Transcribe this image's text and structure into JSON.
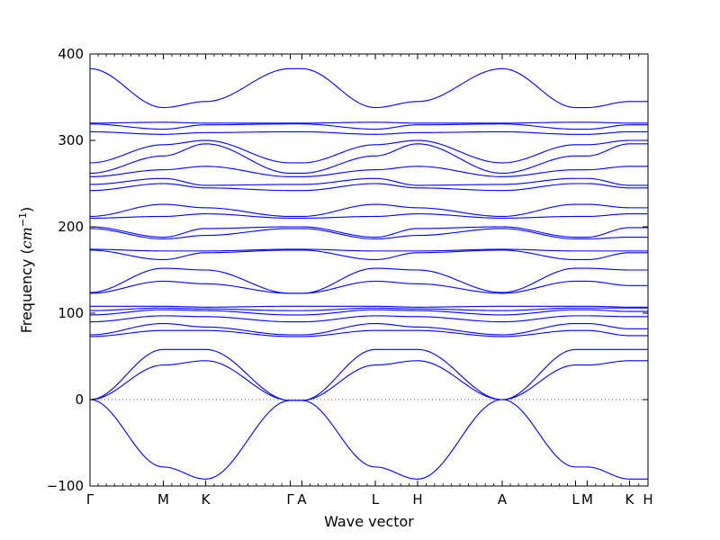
{
  "chart_data": {
    "type": "line",
    "title": "",
    "xlabel": "Wave vector",
    "ylabel": "Frequency (cm⁻¹)",
    "ylabel_text": "Frequency (",
    "ylabel_unit": "cm",
    "ylabel_exp": "−1",
    "ylabel_close": ")",
    "ylim": [
      -100,
      400
    ],
    "y_ticks": [
      -100,
      0,
      100,
      200,
      300,
      400
    ],
    "zero_line": {
      "y": 0,
      "style": "dotted"
    },
    "colors": {
      "bands": "#0000ff",
      "zero_line": "#666666"
    },
    "high_symmetry_points": [
      {
        "label": "Γ",
        "x": 0.0
      },
      {
        "label": "M",
        "x": 0.1315
      },
      {
        "label": "K",
        "x": 0.2073
      },
      {
        "label": "Γ",
        "x": 0.3589
      },
      {
        "label": "A",
        "x": 0.3798
      },
      {
        "label": "L",
        "x": 0.5113
      },
      {
        "label": "H",
        "x": 0.5871
      },
      {
        "label": "A",
        "x": 0.7387
      },
      {
        "label": "L",
        "x": 0.8702
      },
      {
        "label": "M",
        "x": 0.8911
      },
      {
        "label": "K",
        "x": 0.9669
      },
      {
        "label": "H",
        "x": 1.0
      }
    ],
    "series": [
      {
        "values": [
          0,
          -78,
          -92,
          -1,
          -1,
          -78,
          -92,
          0,
          -78,
          -78,
          -92,
          -92
        ]
      },
      {
        "values": [
          0,
          40,
          45,
          -1,
          -1,
          40,
          45,
          0,
          40,
          40,
          45,
          45
        ]
      },
      {
        "values": [
          0,
          58,
          58,
          -1,
          -1,
          58,
          58,
          0,
          58,
          58,
          58,
          58
        ]
      },
      {
        "values": [
          73,
          80,
          80,
          73,
          73,
          80,
          80,
          73,
          80,
          80,
          74,
          74
        ]
      },
      {
        "values": [
          75,
          88,
          84,
          75,
          75,
          88,
          84,
          75,
          88,
          88,
          82,
          82
        ]
      },
      {
        "values": [
          90,
          97,
          96,
          90,
          90,
          97,
          96,
          90,
          97,
          97,
          96,
          96
        ]
      },
      {
        "values": [
          98,
          104,
          103,
          98,
          98,
          104,
          103,
          98,
          104,
          104,
          102,
          102
        ]
      },
      {
        "values": [
          103,
          106,
          105,
          103,
          103,
          106,
          105,
          103,
          106,
          106,
          106,
          106
        ]
      },
      {
        "values": [
          108,
          108,
          107,
          108,
          108,
          108,
          107,
          108,
          108,
          108,
          107,
          107
        ]
      },
      {
        "values": [
          123,
          137,
          134,
          123,
          123,
          137,
          134,
          123,
          137,
          137,
          132,
          132
        ]
      },
      {
        "values": [
          124,
          152,
          150,
          123,
          123,
          152,
          150,
          124,
          152,
          152,
          150,
          150
        ]
      },
      {
        "values": [
          173,
          162,
          170,
          173,
          173,
          162,
          170,
          173,
          162,
          162,
          170,
          170
        ]
      },
      {
        "values": [
          174,
          172,
          172,
          174,
          174,
          172,
          172,
          174,
          172,
          172,
          172,
          172
        ]
      },
      {
        "values": [
          198,
          186,
          190,
          198,
          198,
          186,
          190,
          198,
          186,
          186,
          188,
          188
        ]
      },
      {
        "values": [
          200,
          188,
          198,
          200,
          200,
          188,
          198,
          200,
          188,
          188,
          199,
          199
        ]
      },
      {
        "values": [
          210,
          212,
          215,
          210,
          210,
          212,
          215,
          210,
          212,
          212,
          215,
          215
        ]
      },
      {
        "values": [
          212,
          226,
          222,
          212,
          212,
          226,
          222,
          212,
          226,
          226,
          222,
          222
        ]
      },
      {
        "values": [
          242,
          250,
          245,
          242,
          242,
          250,
          245,
          242,
          250,
          250,
          245,
          245
        ]
      },
      {
        "values": [
          249,
          256,
          248,
          249,
          249,
          256,
          248,
          249,
          256,
          256,
          248,
          248
        ]
      },
      {
        "values": [
          258,
          266,
          270,
          258,
          258,
          266,
          270,
          258,
          266,
          266,
          270,
          270
        ]
      },
      {
        "values": [
          262,
          282,
          296,
          262,
          262,
          282,
          296,
          262,
          282,
          282,
          296,
          296
        ]
      },
      {
        "values": [
          274,
          295,
          300,
          274,
          274,
          295,
          300,
          274,
          295,
          295,
          300,
          300
        ]
      },
      {
        "values": [
          310,
          307,
          309,
          310,
          310,
          307,
          309,
          310,
          307,
          307,
          310,
          310
        ]
      },
      {
        "values": [
          319,
          313,
          318,
          319,
          319,
          313,
          318,
          319,
          313,
          313,
          318,
          318
        ]
      },
      {
        "values": [
          320,
          321,
          320,
          320,
          320,
          321,
          320,
          320,
          321,
          321,
          320,
          320
        ]
      },
      {
        "values": [
          383,
          338,
          345,
          383,
          383,
          338,
          345,
          383,
          338,
          338,
          345,
          345
        ]
      }
    ]
  }
}
